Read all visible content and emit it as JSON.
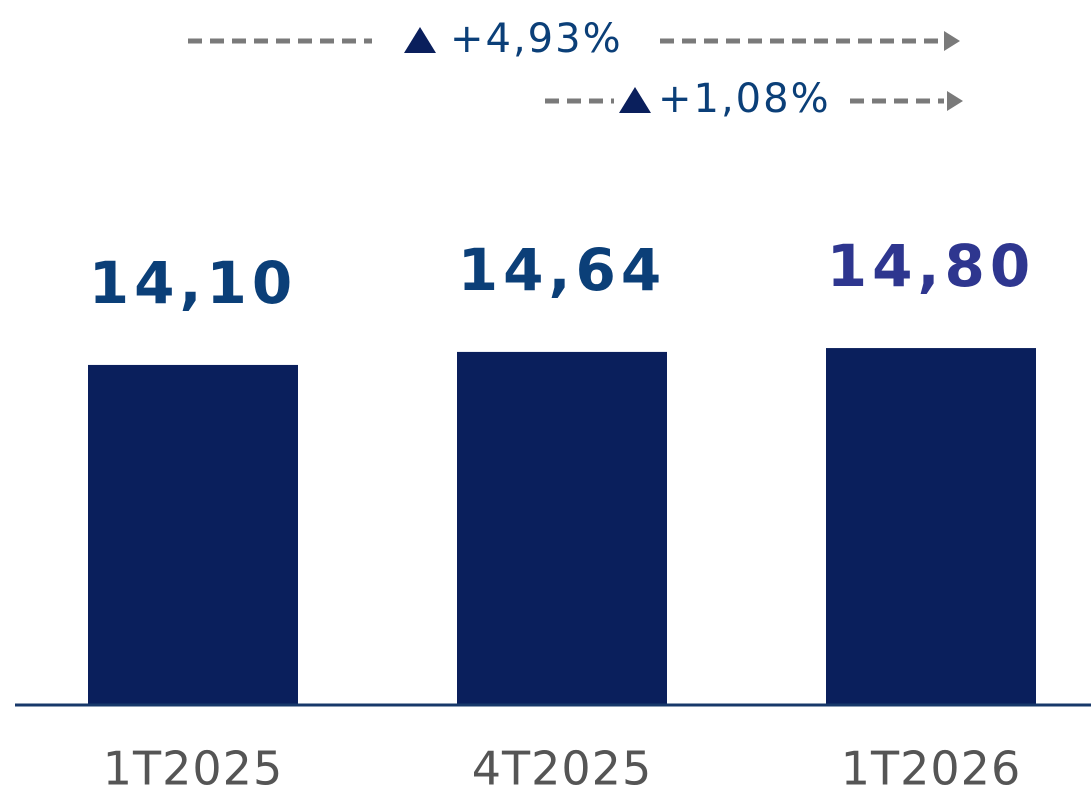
{
  "chart_data": {
    "type": "bar",
    "categories": [
      "1T2025",
      "4T2025",
      "1T2026"
    ],
    "values": [
      14.1,
      14.64,
      14.8
    ],
    "value_labels": [
      "14,10",
      "14,64",
      "14,80"
    ],
    "value_label_colors": [
      "#0b3f78",
      "#0b3f78",
      "#2e368f"
    ],
    "color": "#0a1f5c",
    "ylim": [
      0,
      17
    ],
    "annotations": [
      "+4,93%",
      "+1,08%"
    ]
  }
}
